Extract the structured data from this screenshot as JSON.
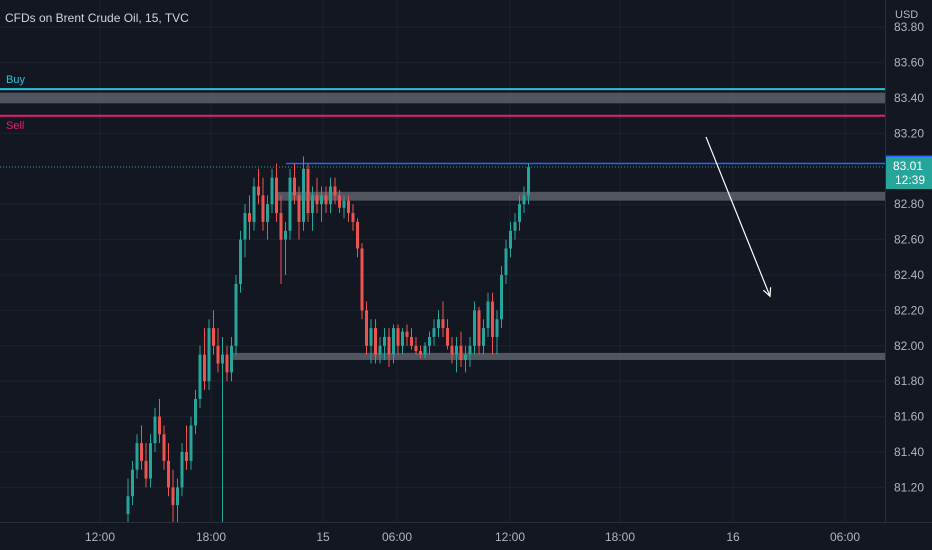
{
  "header": {
    "title": "CFDs on Brent Crude Oil, 15, TVC"
  },
  "currency": "USD",
  "colors": {
    "background": "#131722",
    "grid": "#1e222d",
    "text": "#b2b5be",
    "up": "#26a69a",
    "down": "#ef5350",
    "buy_line": "#26c6da",
    "sell_line": "#e91e63",
    "blue_line": "#2962ff",
    "zone": "#5d606b"
  },
  "labels": {
    "buy": "Buy",
    "sell": "Sell"
  },
  "y_axis": {
    "ticks": [
      "83.80",
      "83.60",
      "83.40",
      "83.20",
      "82.80",
      "82.60",
      "82.40",
      "82.20",
      "82.00",
      "81.80",
      "81.60",
      "81.40",
      "81.20"
    ],
    "tick_values": [
      83.8,
      83.6,
      83.4,
      83.2,
      82.8,
      82.6,
      82.4,
      82.2,
      82.0,
      81.8,
      81.6,
      81.4,
      81.2
    ]
  },
  "x_axis": {
    "ticks": [
      "12:00",
      "18:00",
      "15",
      "06:00",
      "12:00",
      "18:00",
      "16",
      "06:00"
    ]
  },
  "price_badges": {
    "level": "83.03",
    "last": "83.01",
    "countdown": "12:39"
  },
  "chart_data": {
    "type": "candlestick",
    "title": "CFDs on Brent Crude Oil, 15, TVC",
    "ylim": [
      81.0,
      83.85
    ],
    "levels": {
      "buy": 83.45,
      "sell": 83.3,
      "resistance": 83.03,
      "last": 83.01
    },
    "zones": [
      {
        "low": 83.37,
        "high": 83.43
      },
      {
        "low": 82.82,
        "high": 82.87
      },
      {
        "low": 81.92,
        "high": 81.96
      }
    ],
    "arrow": {
      "from": {
        "time_index": 146,
        "price": 83.18
      },
      "to": {
        "time_index": 160,
        "price": 82.28
      }
    },
    "candles": [
      {
        "o": 81.05,
        "h": 81.25,
        "l": 81.0,
        "c": 81.15
      },
      {
        "o": 81.15,
        "h": 81.35,
        "l": 81.1,
        "c": 81.3
      },
      {
        "o": 81.3,
        "h": 81.5,
        "l": 81.25,
        "c": 81.45
      },
      {
        "o": 81.45,
        "h": 81.55,
        "l": 81.3,
        "c": 81.35
      },
      {
        "o": 81.35,
        "h": 81.45,
        "l": 81.2,
        "c": 81.25
      },
      {
        "o": 81.25,
        "h": 81.5,
        "l": 81.2,
        "c": 81.45
      },
      {
        "o": 81.45,
        "h": 81.65,
        "l": 81.4,
        "c": 81.6
      },
      {
        "o": 81.6,
        "h": 81.7,
        "l": 81.45,
        "c": 81.5
      },
      {
        "o": 81.5,
        "h": 81.55,
        "l": 81.3,
        "c": 81.35
      },
      {
        "o": 81.35,
        "h": 81.45,
        "l": 81.15,
        "c": 81.2
      },
      {
        "o": 81.2,
        "h": 81.3,
        "l": 81.0,
        "c": 81.1
      },
      {
        "o": 81.1,
        "h": 81.25,
        "l": 81.0,
        "c": 81.2
      },
      {
        "o": 81.2,
        "h": 81.45,
        "l": 81.15,
        "c": 81.4
      },
      {
        "o": 81.4,
        "h": 81.55,
        "l": 81.3,
        "c": 81.35
      },
      {
        "o": 81.35,
        "h": 81.6,
        "l": 81.3,
        "c": 81.55
      },
      {
        "o": 81.55,
        "h": 81.75,
        "l": 81.5,
        "c": 81.7
      },
      {
        "o": 81.7,
        "h": 82.0,
        "l": 81.65,
        "c": 81.95
      },
      {
        "o": 81.95,
        "h": 82.1,
        "l": 81.75,
        "c": 81.8
      },
      {
        "o": 81.8,
        "h": 82.15,
        "l": 81.75,
        "c": 82.1
      },
      {
        "o": 82.1,
        "h": 82.2,
        "l": 81.95,
        "c": 82.0
      },
      {
        "o": 82.0,
        "h": 82.1,
        "l": 81.85,
        "c": 81.9
      },
      {
        "o": 81.9,
        "h": 82.05,
        "l": 81.0,
        "c": 81.95
      },
      {
        "o": 81.95,
        "h": 82.0,
        "l": 81.8,
        "c": 81.85
      },
      {
        "o": 81.85,
        "h": 82.05,
        "l": 81.8,
        "c": 82.0
      },
      {
        "o": 82.0,
        "h": 82.4,
        "l": 81.95,
        "c": 82.35
      },
      {
        "o": 82.35,
        "h": 82.65,
        "l": 82.3,
        "c": 82.6
      },
      {
        "o": 82.6,
        "h": 82.8,
        "l": 82.5,
        "c": 82.75
      },
      {
        "o": 82.75,
        "h": 82.85,
        "l": 82.6,
        "c": 82.7
      },
      {
        "o": 82.7,
        "h": 82.95,
        "l": 82.65,
        "c": 82.9
      },
      {
        "o": 82.9,
        "h": 83.0,
        "l": 82.8,
        "c": 82.85
      },
      {
        "o": 82.85,
        "h": 82.95,
        "l": 82.65,
        "c": 82.7
      },
      {
        "o": 82.7,
        "h": 82.85,
        "l": 82.6,
        "c": 82.8
      },
      {
        "o": 82.8,
        "h": 83.0,
        "l": 82.75,
        "c": 82.95
      },
      {
        "o": 82.95,
        "h": 83.03,
        "l": 82.7,
        "c": 82.75
      },
      {
        "o": 82.75,
        "h": 82.85,
        "l": 82.35,
        "c": 82.6
      },
      {
        "o": 82.6,
        "h": 82.7,
        "l": 82.4,
        "c": 82.65
      },
      {
        "o": 82.65,
        "h": 83.0,
        "l": 82.6,
        "c": 82.95
      },
      {
        "o": 82.95,
        "h": 83.03,
        "l": 82.8,
        "c": 82.85
      },
      {
        "o": 82.85,
        "h": 82.9,
        "l": 82.6,
        "c": 82.7
      },
      {
        "o": 82.7,
        "h": 83.07,
        "l": 82.65,
        "c": 83.0
      },
      {
        "o": 83.0,
        "h": 83.03,
        "l": 82.7,
        "c": 82.75
      },
      {
        "o": 82.75,
        "h": 82.9,
        "l": 82.65,
        "c": 82.85
      },
      {
        "o": 82.85,
        "h": 82.95,
        "l": 82.75,
        "c": 82.8
      },
      {
        "o": 82.8,
        "h": 82.9,
        "l": 82.7,
        "c": 82.85
      },
      {
        "o": 82.85,
        "h": 82.9,
        "l": 82.75,
        "c": 82.8
      },
      {
        "o": 82.8,
        "h": 82.95,
        "l": 82.75,
        "c": 82.9
      },
      {
        "o": 82.9,
        "h": 82.95,
        "l": 82.8,
        "c": 82.85
      },
      {
        "o": 82.85,
        "h": 82.88,
        "l": 82.75,
        "c": 82.78
      },
      {
        "o": 82.78,
        "h": 82.85,
        "l": 82.72,
        "c": 82.82
      },
      {
        "o": 82.82,
        "h": 82.85,
        "l": 82.7,
        "c": 82.75
      },
      {
        "o": 82.75,
        "h": 82.8,
        "l": 82.65,
        "c": 82.7
      },
      {
        "o": 82.7,
        "h": 82.72,
        "l": 82.5,
        "c": 82.55
      },
      {
        "o": 82.55,
        "h": 82.58,
        "l": 82.15,
        "c": 82.2
      },
      {
        "o": 82.2,
        "h": 82.25,
        "l": 81.95,
        "c": 82.0
      },
      {
        "o": 82.0,
        "h": 82.15,
        "l": 81.9,
        "c": 82.1
      },
      {
        "o": 82.1,
        "h": 82.15,
        "l": 81.9,
        "c": 81.95
      },
      {
        "o": 81.95,
        "h": 82.05,
        "l": 81.9,
        "c": 82.0
      },
      {
        "o": 82.0,
        "h": 82.1,
        "l": 81.92,
        "c": 82.05
      },
      {
        "o": 82.05,
        "h": 82.1,
        "l": 81.88,
        "c": 81.95
      },
      {
        "o": 81.95,
        "h": 82.12,
        "l": 81.9,
        "c": 82.1
      },
      {
        "o": 82.1,
        "h": 82.12,
        "l": 81.95,
        "c": 82.0
      },
      {
        "o": 82.0,
        "h": 82.1,
        "l": 81.95,
        "c": 82.08
      },
      {
        "o": 82.08,
        "h": 82.12,
        "l": 82.0,
        "c": 82.05
      },
      {
        "o": 82.05,
        "h": 82.1,
        "l": 81.98,
        "c": 82.0
      },
      {
        "o": 82.0,
        "h": 82.05,
        "l": 81.95,
        "c": 81.97
      },
      {
        "o": 81.97,
        "h": 82.0,
        "l": 81.93,
        "c": 81.95
      },
      {
        "o": 81.95,
        "h": 82.02,
        "l": 81.93,
        "c": 82.0
      },
      {
        "o": 82.0,
        "h": 82.08,
        "l": 81.95,
        "c": 82.05
      },
      {
        "o": 82.05,
        "h": 82.15,
        "l": 82.0,
        "c": 82.1
      },
      {
        "o": 82.1,
        "h": 82.2,
        "l": 82.05,
        "c": 82.15
      },
      {
        "o": 82.15,
        "h": 82.25,
        "l": 82.05,
        "c": 82.1
      },
      {
        "o": 82.1,
        "h": 82.15,
        "l": 81.98,
        "c": 82.0
      },
      {
        "o": 82.0,
        "h": 82.05,
        "l": 81.9,
        "c": 81.95
      },
      {
        "o": 81.95,
        "h": 82.05,
        "l": 81.85,
        "c": 82.0
      },
      {
        "o": 82.0,
        "h": 82.08,
        "l": 81.88,
        "c": 81.92
      },
      {
        "o": 81.92,
        "h": 82.0,
        "l": 81.85,
        "c": 81.95
      },
      {
        "o": 81.95,
        "h": 82.05,
        "l": 81.88,
        "c": 82.0
      },
      {
        "o": 82.0,
        "h": 82.25,
        "l": 81.95,
        "c": 82.2
      },
      {
        "o": 82.2,
        "h": 82.22,
        "l": 81.95,
        "c": 82.0
      },
      {
        "o": 82.0,
        "h": 82.15,
        "l": 81.95,
        "c": 82.1
      },
      {
        "o": 82.1,
        "h": 82.3,
        "l": 82.05,
        "c": 82.25
      },
      {
        "o": 82.25,
        "h": 82.3,
        "l": 81.95,
        "c": 82.05
      },
      {
        "o": 82.05,
        "h": 82.2,
        "l": 81.95,
        "c": 82.15
      },
      {
        "o": 82.15,
        "h": 82.45,
        "l": 82.1,
        "c": 82.4
      },
      {
        "o": 82.4,
        "h": 82.6,
        "l": 82.35,
        "c": 82.55
      },
      {
        "o": 82.55,
        "h": 82.7,
        "l": 82.5,
        "c": 82.65
      },
      {
        "o": 82.65,
        "h": 82.75,
        "l": 82.6,
        "c": 82.7
      },
      {
        "o": 82.7,
        "h": 82.85,
        "l": 82.65,
        "c": 82.8
      },
      {
        "o": 82.8,
        "h": 82.9,
        "l": 82.75,
        "c": 82.85
      },
      {
        "o": 82.85,
        "h": 83.03,
        "l": 82.8,
        "c": 83.01
      }
    ]
  }
}
